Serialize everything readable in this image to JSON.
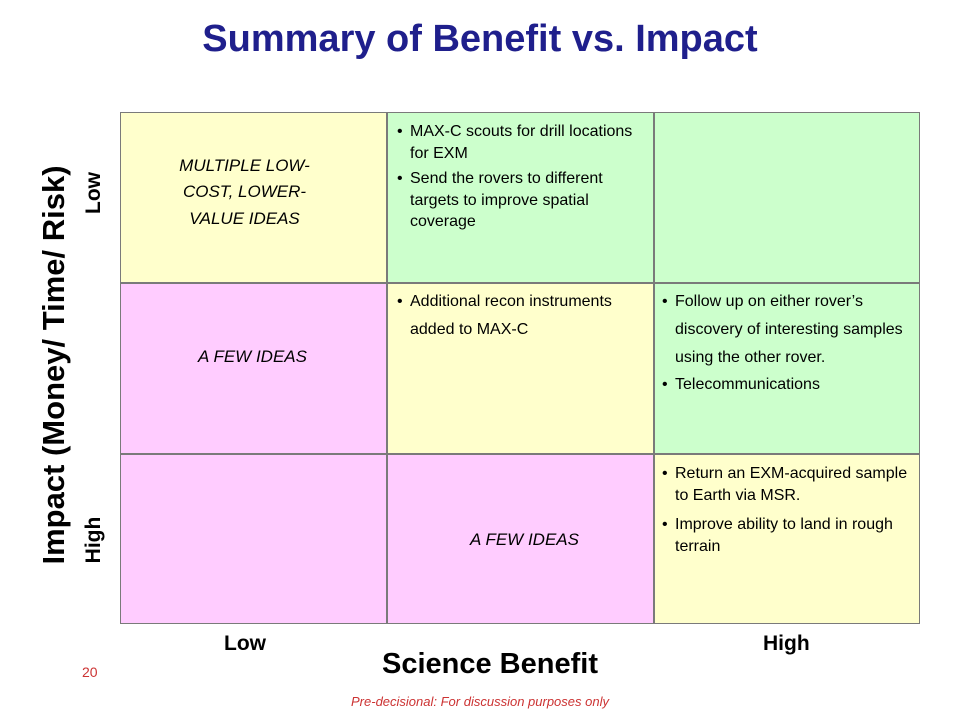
{
  "title": "Summary of Benefit vs. Impact",
  "y_axis": {
    "label": "Impact (Money/ Time/ Risk)",
    "low_label": "Low",
    "high_label": "High"
  },
  "x_axis": {
    "label": "Science Benefit",
    "low_label": "Low",
    "high_label": "High"
  },
  "cells": {
    "r0c0": {
      "text_lines": [
        "MULTIPLE LOW-",
        "COST, LOWER-",
        "VALUE IDEAS"
      ],
      "color": "#ffffcc"
    },
    "r0c1": {
      "bullets": [
        "MAX-C scouts for drill locations for EXM",
        "Send the rovers to different targets to improve spatial coverage"
      ],
      "color": "#ccffcc"
    },
    "r0c2": {
      "color": "#ccffcc"
    },
    "r1c0": {
      "text": "A FEW IDEAS",
      "color": "#ffccff"
    },
    "r1c1": {
      "bullets": [
        "Additional recon instruments added to MAX-C"
      ],
      "color": "#ffffcc"
    },
    "r1c2": {
      "bullets": [
        "Follow up on either rover’s discovery of interesting samples using the other rover.",
        "Telecommunications"
      ],
      "color": "#ccffcc"
    },
    "r2c0": {
      "color": "#ffccff"
    },
    "r2c1": {
      "text": "A FEW IDEAS",
      "color": "#ffccff"
    },
    "r2c2": {
      "bullets": [
        "Return an EXM-acquired sample to Earth via MSR.",
        "Improve ability to land in rough terrain"
      ],
      "color": "#ffffcc"
    }
  },
  "page_number": "20",
  "footer": "Pre-decisional: For discussion purposes only",
  "colors": {
    "title": "#1f1f8c",
    "footer": "#cc3333"
  }
}
